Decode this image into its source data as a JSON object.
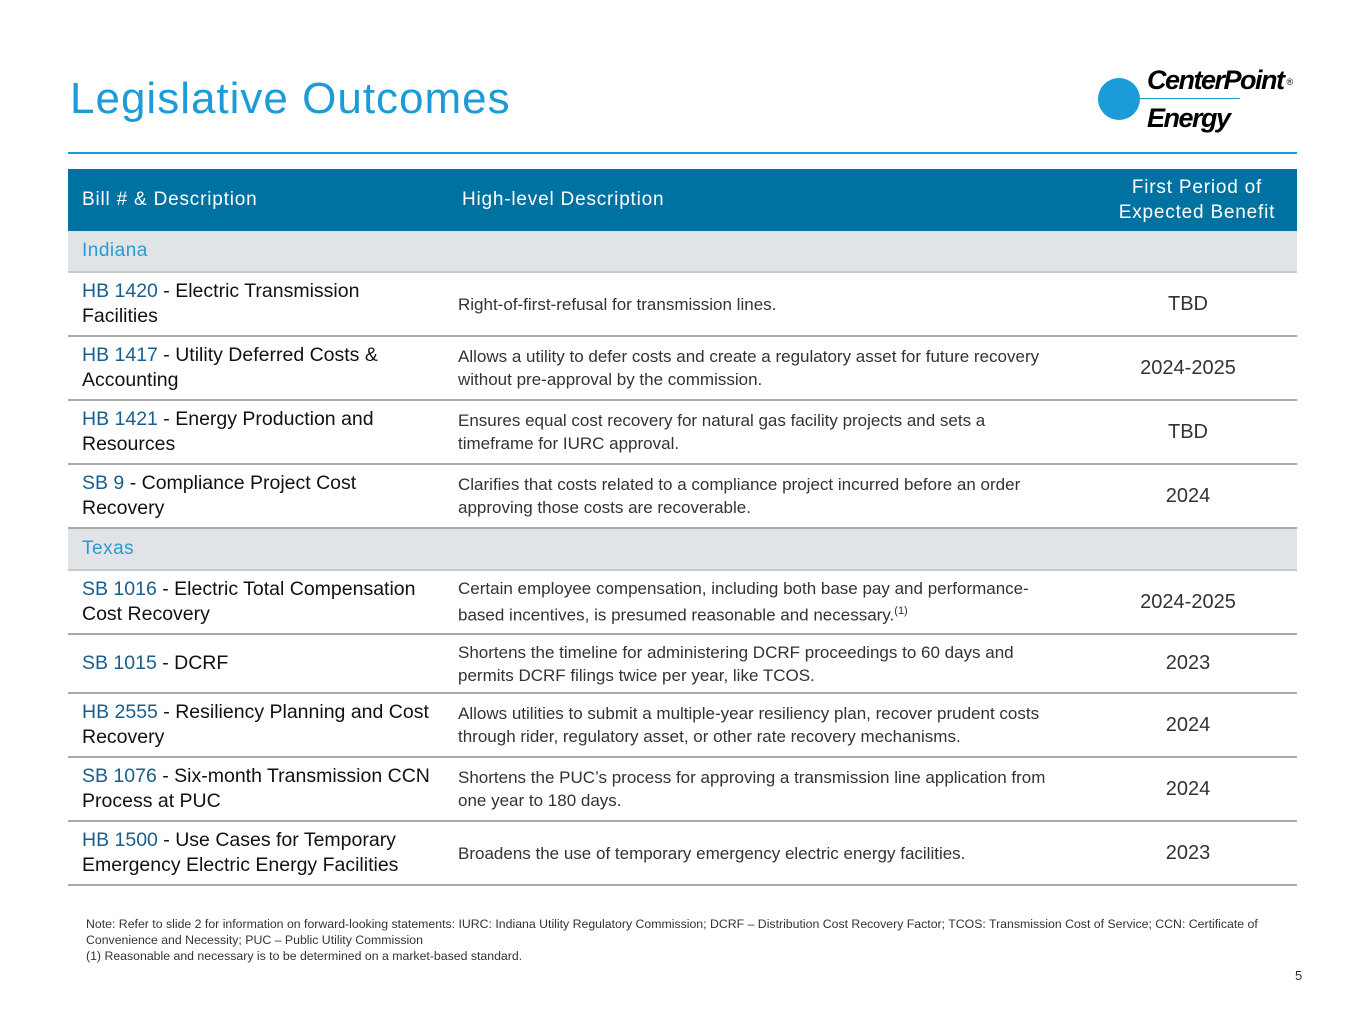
{
  "title": "Legislative Outcomes",
  "logo": {
    "line1": "CenterPoint",
    "line2": "Energy",
    "reg": "®",
    "accent": "#1b9bd7"
  },
  "table": {
    "headers": [
      "Bill # & Description",
      "High-level Description",
      "First Period of Expected Benefit"
    ],
    "sections": [
      {
        "name": "Indiana",
        "rows": [
          {
            "bill": "HB 1420",
            "title": " - Electric Transmission Facilities",
            "desc": "Right-of-first-refusal for transmission lines.",
            "period": "TBD"
          },
          {
            "bill": "HB 1417",
            "title": " - Utility Deferred Costs & Accounting",
            "desc": "Allows a utility to defer costs and create a regulatory asset for future recovery without pre-approval by the commission.",
            "period": "2024-2025"
          },
          {
            "bill": "HB 1421",
            "title": " - Energy Production and Resources",
            "desc": "Ensures equal cost recovery for natural gas facility projects and sets a timeframe for IURC approval.",
            "period": "TBD"
          },
          {
            "bill": "SB 9",
            "title": " - Compliance Project Cost Recovery",
            "desc": "Clarifies that costs related to a compliance project incurred before an order approving those costs are recoverable.",
            "period": "2024"
          }
        ]
      },
      {
        "name": "Texas",
        "rows": [
          {
            "bill": "SB 1016",
            "title": " - Electric Total Compensation Cost Recovery",
            "desc": "Certain employee compensation, including both base pay and performance-based incentives, is presumed reasonable and necessary.",
            "sup": "(1)",
            "period": "2024-2025"
          },
          {
            "bill": "SB 1015",
            "title": " - DCRF",
            "desc": "Shortens the timeline for administering DCRF proceedings to 60 days and permits DCRF filings twice per year, like TCOS.",
            "period": "2023"
          },
          {
            "bill": "HB 2555",
            "title": " - Resiliency Planning and Cost Recovery",
            "desc": "Allows utilities to submit a multiple-year resiliency plan, recover prudent costs through rider, regulatory asset, or other rate recovery mechanisms.",
            "period": "2024"
          },
          {
            "bill": "SB 1076",
            "title": " - Six-month Transmission CCN Process at PUC",
            "desc": "Shortens the PUC’s process for approving a transmission line application from one year to 180 days.",
            "period": "2024"
          },
          {
            "bill": "HB 1500",
            "title": " - Use Cases for Temporary Emergency Electric Energy Facilities",
            "desc": "Broadens the use of temporary emergency electric energy facilities.",
            "period": "2023"
          }
        ]
      }
    ]
  },
  "note": "Note: Refer to slide 2 for information on forward-looking statements: IURC: Indiana Utility Regulatory Commission; DCRF – Distribution Cost Recovery Factor; TCOS: Transmission Cost of Service; CCN: Certificate of Convenience and Necessity; PUC – Public Utility Commission",
  "footnote": "(1) Reasonable and necessary is to be determined on a market-based standard.",
  "page_number": "5"
}
